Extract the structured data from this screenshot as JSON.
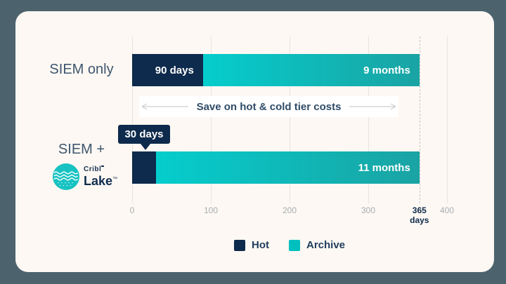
{
  "brand": {
    "top": "Cribl",
    "bottom": "Lake",
    "tm": "™"
  },
  "palette": {
    "page_bg": "#4c636e",
    "card_bg": "#fdf8f3",
    "hot": "#0e2a4c",
    "archive_start": "#05cdcd",
    "archive_end": "#1aa3a3",
    "legend_hot": "#0e2a4c",
    "legend_archive": "#00bfbf",
    "grid": "#e8e3dd",
    "tick_text": "#a8adb2",
    "row_label_text": "#3e566f",
    "logo_teal": "#17c2c2"
  },
  "chart_data": {
    "type": "bar",
    "orientation": "horizontal",
    "stacked": true,
    "unit": "days",
    "x_axis": {
      "min": 0,
      "max": 400,
      "ticks": [
        {
          "value": 0,
          "label": "0"
        },
        {
          "value": 100,
          "label": "100"
        },
        {
          "value": 200,
          "label": "200"
        },
        {
          "value": 300,
          "label": "300"
        },
        {
          "value": 365,
          "label": "365",
          "sublabel": "days",
          "emphasis": true,
          "dashed": true
        },
        {
          "value": 400,
          "label": "400"
        }
      ]
    },
    "rows": [
      {
        "label": "SIEM only",
        "hot_days": 90,
        "hot_label": "90 days",
        "archive_days": 275,
        "archive_label": "9 months",
        "total_days": 365
      },
      {
        "label": "SIEM +",
        "brand": "Cribl Lake",
        "hot_days": 30,
        "hot_label": "30 days",
        "archive_days": 335,
        "archive_label": "11 months",
        "total_days": 365
      }
    ],
    "annotation": "Save on hot & cold tier costs",
    "legend": [
      {
        "name": "Hot",
        "color": "#0e2a4c"
      },
      {
        "name": "Archive",
        "color": "#00bfbf"
      }
    ]
  }
}
